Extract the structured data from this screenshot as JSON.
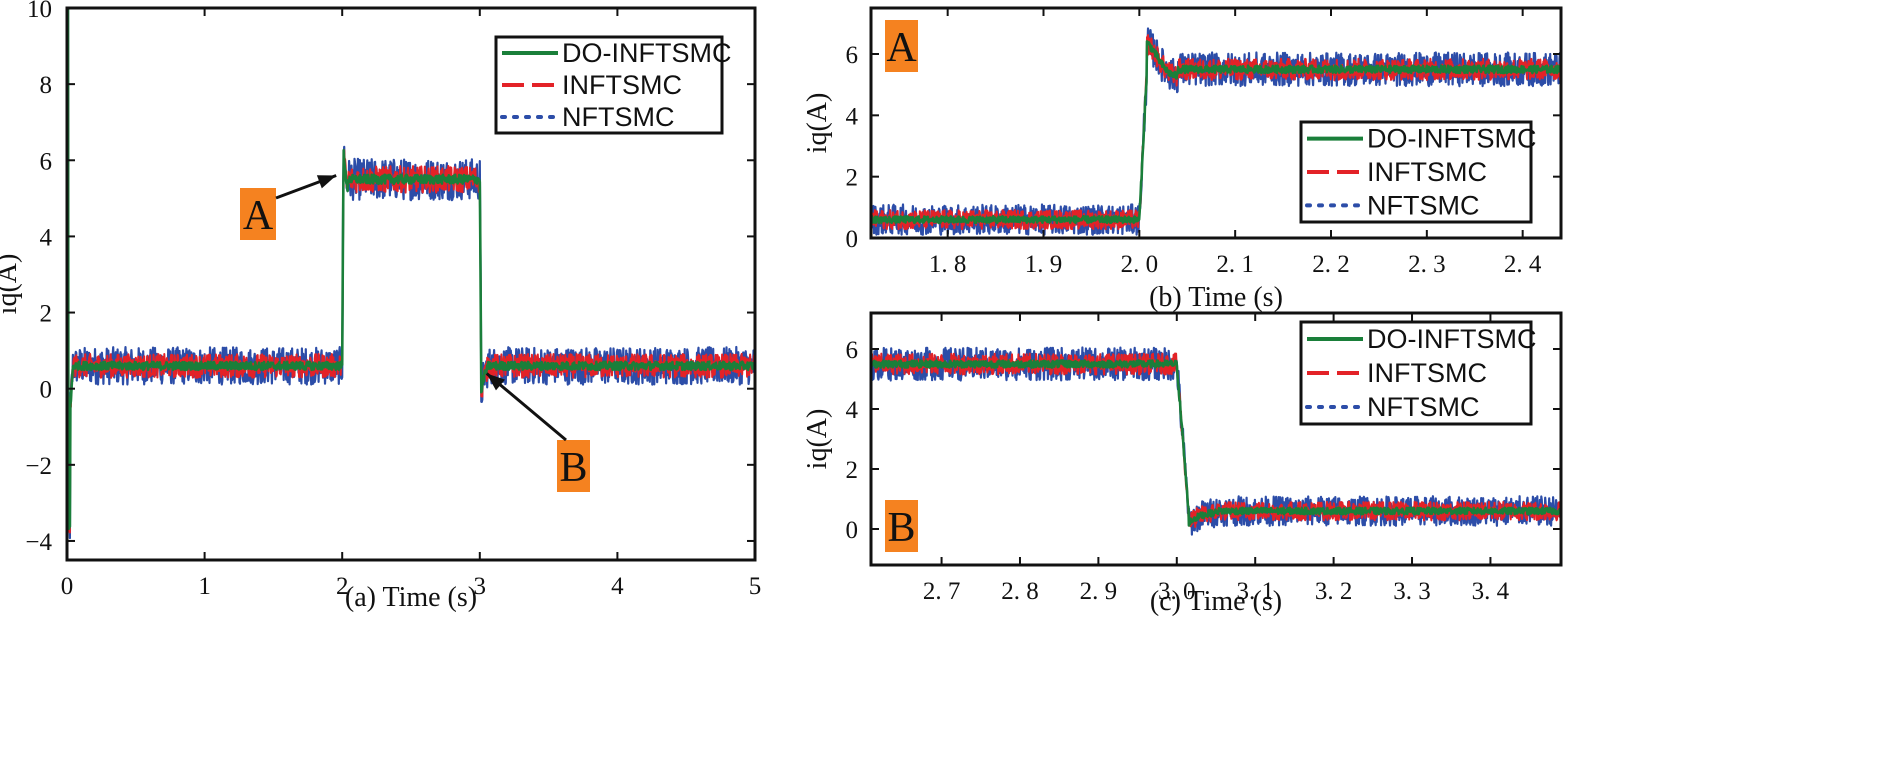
{
  "colors": {
    "do_infsmc": "#1a7f3a",
    "infsmc": "#e32227",
    "nftsmc": "#2c4da8",
    "marker_bg": "#f58220"
  },
  "chart_data": [
    {
      "type": "line",
      "id": "a",
      "xlabel": "(a) Time (s)",
      "ylabel": "iq(A)",
      "xlim": [
        0,
        5
      ],
      "ylim": [
        -4.5,
        10
      ],
      "xticks": [
        0,
        1,
        2,
        3,
        4,
        5
      ],
      "xtick_labels": [
        "0",
        "1",
        "2",
        "3",
        "4",
        "5"
      ],
      "yticks": [
        -4,
        -2,
        0,
        2,
        4,
        6,
        8,
        10
      ],
      "ytick_labels": [
        "−4",
        "−2",
        "0",
        "2",
        "4",
        "6",
        "8",
        "10"
      ],
      "legend_position": "top-right",
      "series": [
        {
          "name": "DO-INFTSMC",
          "style": "solid",
          "low_level": 0.6,
          "high_level": 5.5,
          "noise": 0.12
        },
        {
          "name": "INFTSMC",
          "style": "dashed",
          "low_level": 0.6,
          "high_level": 5.5,
          "noise": 0.35
        },
        {
          "name": "NFTSMC",
          "style": "dotted",
          "low_level": 0.6,
          "high_level": 5.5,
          "noise": 0.55
        }
      ],
      "load_step": {
        "on_time": 2.0,
        "off_time": 3.0
      },
      "annotations": [
        {
          "label": "A",
          "target_x": 2.0,
          "target_y": 5.6
        },
        {
          "label": "B",
          "target_x": 3.05,
          "target_y": 0.4
        }
      ]
    },
    {
      "type": "line",
      "id": "b",
      "xlabel": "(b) Time (s)",
      "ylabel": "iq(A)",
      "xlim": [
        1.72,
        2.44
      ],
      "ylim": [
        0,
        7.5
      ],
      "xticks": [
        1.8,
        1.9,
        2.0,
        2.1,
        2.2,
        2.3,
        2.4
      ],
      "xtick_labels": [
        "1. 8",
        "1. 9",
        "2. 0",
        "2. 1",
        "2. 2",
        "2. 3",
        "2. 4"
      ],
      "yticks": [
        0,
        2,
        4,
        6
      ],
      "ytick_labels": [
        "0",
        "2",
        "4",
        "6"
      ],
      "legend_position": "right",
      "series": [
        {
          "name": "DO-INFTSMC",
          "style": "solid",
          "low_level": 0.6,
          "high_level": 5.5,
          "noise": 0.12
        },
        {
          "name": "INFTSMC",
          "style": "dashed",
          "low_level": 0.6,
          "high_level": 5.5,
          "noise": 0.35
        },
        {
          "name": "NFTSMC",
          "style": "dotted",
          "low_level": 0.6,
          "high_level": 5.5,
          "noise": 0.55
        }
      ],
      "marker": "A"
    },
    {
      "type": "line",
      "id": "c",
      "xlabel": "(c) Time (s)",
      "ylabel": "iq(A)",
      "xlim": [
        2.61,
        3.49
      ],
      "ylim": [
        -1.2,
        7.2
      ],
      "xticks": [
        2.7,
        2.8,
        2.9,
        3.0,
        3.1,
        3.2,
        3.3,
        3.4
      ],
      "xtick_labels": [
        "2. 7",
        "2. 8",
        "2. 9",
        "3. 0",
        "3. 1",
        "3. 2",
        "3. 3",
        "3. 4"
      ],
      "yticks": [
        0,
        2,
        4,
        6
      ],
      "ytick_labels": [
        "0",
        "2",
        "4",
        "6"
      ],
      "legend_position": "top-right",
      "series": [
        {
          "name": "DO-INFTSMC",
          "style": "solid",
          "low_level": 0.6,
          "high_level": 5.5,
          "noise": 0.12
        },
        {
          "name": "INFTSMC",
          "style": "dashed",
          "low_level": 0.6,
          "high_level": 5.5,
          "noise": 0.35
        },
        {
          "name": "NFTSMC",
          "style": "dotted",
          "low_level": 0.6,
          "high_level": 5.5,
          "noise": 0.55
        }
      ],
      "marker": "B"
    }
  ]
}
